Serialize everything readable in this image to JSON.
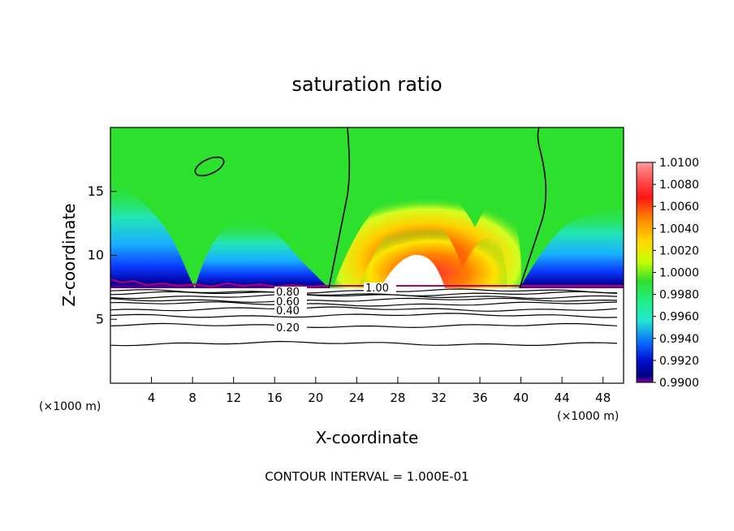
{
  "chart_data": {
    "type": "heatmap",
    "title": "saturation ratio",
    "xlabel": "X-coordinate",
    "ylabel": "Z-coordinate",
    "x_unit": "(×1000 m)",
    "x_unit_right": "(×1000 m)",
    "xlim": [
      0,
      50
    ],
    "ylim": [
      0,
      20
    ],
    "x_ticks": [
      "4",
      "8",
      "12",
      "16",
      "20",
      "24",
      "28",
      "32",
      "36",
      "40",
      "44",
      "48"
    ],
    "y_ticks": [
      "5",
      "10",
      "15"
    ],
    "footer": "CONTOUR INTERVAL = 1.000E-01",
    "colorbar": {
      "min": 0.99,
      "max": 1.01,
      "labels": [
        "1.0100",
        "1.0080",
        "1.0060",
        "1.0040",
        "1.0020",
        "1.0000",
        "0.9980",
        "0.9960",
        "0.9940",
        "0.9920",
        "0.9900"
      ]
    },
    "contour_labels": [
      "0.80",
      "0.60",
      "0.40",
      "0.20",
      "1.00"
    ],
    "contour_levels_z": [
      3.1,
      4.5,
      5.3,
      5.8,
      6.2,
      6.5,
      6.8,
      7.0,
      7.2
    ]
  },
  "colors": {
    "green": "#2ee02e",
    "cyan": "#22e6c8",
    "blue": "#0a5aff",
    "navy": "#0000a0",
    "yellow": "#ffff1e",
    "orange": "#ff9600",
    "red": "#ff2020",
    "pink": "#ff9090"
  }
}
